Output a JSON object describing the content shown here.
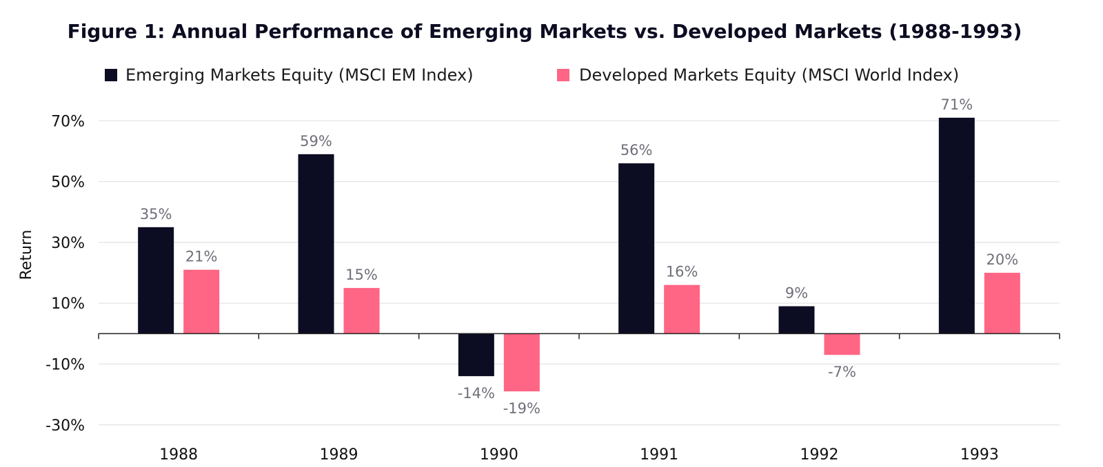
{
  "chart_data": {
    "type": "bar",
    "title": "Figure 1: Annual Performance of Emerging Markets vs. Developed Markets (1988-1993)",
    "xlabel": "",
    "ylabel": "Return",
    "categories": [
      "1988",
      "1989",
      "1990",
      "1991",
      "1992",
      "1993"
    ],
    "series": [
      {
        "name": "Emerging Markets Equity (MSCI EM Index)",
        "color": "#0c0c22",
        "values": [
          35,
          59,
          -14,
          56,
          9,
          71
        ],
        "labels": [
          "35%",
          "59%",
          "-14%",
          "56%",
          "9%",
          "71%"
        ]
      },
      {
        "name": "Developed Markets Equity (MSCI World Index)",
        "color": "#ff6584",
        "values": [
          21,
          15,
          -19,
          16,
          -7,
          20
        ],
        "labels": [
          "21%",
          "15%",
          "-19%",
          "16%",
          "-7%",
          "20%"
        ]
      }
    ],
    "yticks": [
      70,
      50,
      30,
      10,
      -10,
      -30
    ],
    "ytick_labels": [
      "70%",
      "50%",
      "30%",
      "10%",
      "-10%",
      "-30%"
    ],
    "ylim": [
      -33,
      78
    ],
    "grid": true,
    "legend": "top"
  }
}
